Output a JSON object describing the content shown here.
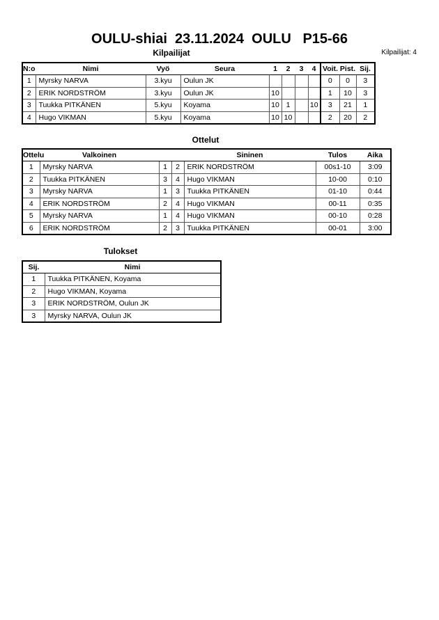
{
  "header": {
    "title": "OULU-shiai  23.11.2024  OULU   P15-66",
    "competitors_count": "Kilpailijat: 4"
  },
  "competitors": {
    "heading": "Kilpailijat",
    "columns": [
      "N:o",
      "Nimi",
      "Vyö",
      "Seura",
      "1",
      "2",
      "3",
      "4",
      "Voit.",
      "Pist.",
      "Sij."
    ],
    "rows": [
      [
        "1",
        "Myrsky NARVA",
        "3.kyu",
        "Oulun JK",
        "",
        "",
        "",
        "",
        "0",
        "0",
        "3"
      ],
      [
        "2",
        "ERIK NORDSTRÖM",
        "3.kyu",
        "Oulun JK",
        "10",
        "",
        "",
        "",
        "1",
        "10",
        "3"
      ],
      [
        "3",
        "Tuukka PITKÄNEN",
        "5.kyu",
        "Koyama",
        "10",
        "1",
        "",
        "10",
        "3",
        "21",
        "1"
      ],
      [
        "4",
        "Hugo VIKMAN",
        "5.kyu",
        "Koyama",
        "10",
        "10",
        "",
        "",
        "2",
        "20",
        "2"
      ]
    ]
  },
  "matches": {
    "heading": "Ottelut",
    "columns": [
      "Ottelu",
      "Valkoinen",
      "",
      "",
      "Sininen",
      "Tulos",
      "Aika"
    ],
    "rows": [
      [
        "1",
        "Myrsky NARVA",
        "1",
        "2",
        "ERIK NORDSTRÖM",
        "00s1-10",
        "3:09"
      ],
      [
        "2",
        "Tuukka PITKÄNEN",
        "3",
        "4",
        "Hugo VIKMAN",
        "10-00",
        "0:10"
      ],
      [
        "3",
        "Myrsky NARVA",
        "1",
        "3",
        "Tuukka PITKÄNEN",
        "01-10",
        "0:44"
      ],
      [
        "4",
        "ERIK NORDSTRÖM",
        "2",
        "4",
        "Hugo VIKMAN",
        "00-11",
        "0:35"
      ],
      [
        "5",
        "Myrsky NARVA",
        "1",
        "4",
        "Hugo VIKMAN",
        "00-10",
        "0:28"
      ],
      [
        "6",
        "ERIK NORDSTRÖM",
        "2",
        "3",
        "Tuukka PITKÄNEN",
        "00-01",
        "3:00"
      ]
    ]
  },
  "results": {
    "heading": "Tulokset",
    "columns": [
      "Sij.",
      "Nimi"
    ],
    "rows": [
      [
        "1",
        "Tuukka PITKÄNEN, Koyama"
      ],
      [
        "2",
        "Hugo VIKMAN, Koyama"
      ],
      [
        "3",
        "ERIK NORDSTRÖM, Oulun JK"
      ],
      [
        "3",
        "Myrsky NARVA, Oulun JK"
      ]
    ]
  }
}
